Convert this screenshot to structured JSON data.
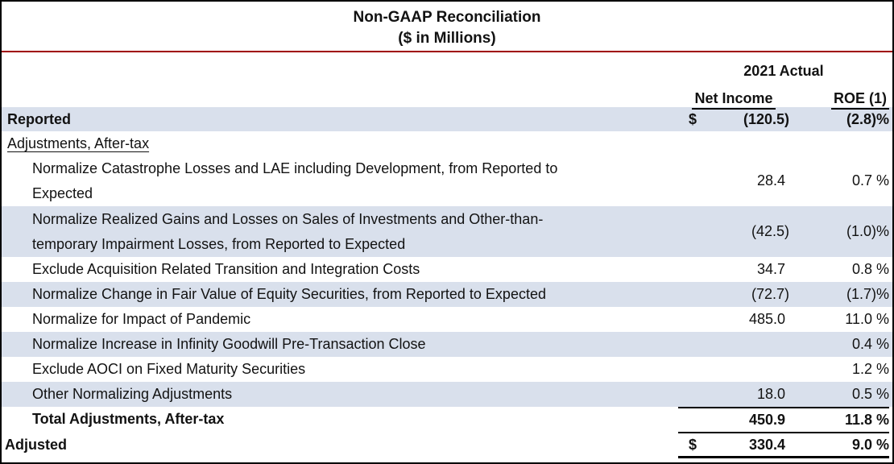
{
  "title": {
    "line1": "Non-GAAP Reconciliation",
    "line2": "($ in Millions)"
  },
  "columns": {
    "group": "2021 Actual",
    "net_income": "Net Income",
    "roe": "ROE (1)"
  },
  "colors": {
    "title_rule": "#A00000",
    "band": "#D9E0EC",
    "text": "#121212",
    "border": "#000000"
  },
  "rows": [
    {
      "label": "Reported",
      "dollar": "$",
      "net": "(120.5)",
      "roe": "(2.8)%"
    },
    {
      "label": "Adjustments, After-tax",
      "net": "",
      "roe": ""
    },
    {
      "label": "Normalize Catastrophe Losses and LAE including Development, from Reported to Expected",
      "net": "28.4 ",
      "roe": "0.7 %"
    },
    {
      "label": "Normalize Realized Gains and Losses on Sales of Investments and Other-than-temporary Impairment Losses, from Reported to Expected",
      "net": "(42.5)",
      "roe": "(1.0)%"
    },
    {
      "label": "Exclude Acquisition Related Transition and Integration Costs",
      "net": "34.7 ",
      "roe": "0.8 %"
    },
    {
      "label": "Normalize Change in Fair Value of Equity Securities, from Reported to Expected",
      "net": "(72.7)",
      "roe": "(1.7)%"
    },
    {
      "label": "Normalize for Impact of Pandemic",
      "net": "485.0 ",
      "roe": "11.0 %"
    },
    {
      "label": "Normalize Increase in Infinity Goodwill Pre-Transaction Close",
      "net": "",
      "roe": "0.4 %"
    },
    {
      "label": "Exclude AOCI on Fixed Maturity Securities",
      "net": "",
      "roe": "1.2 %"
    },
    {
      "label": "Other Normalizing Adjustments",
      "net": "18.0 ",
      "roe": "0.5 %"
    },
    {
      "label": "Total Adjustments, After-tax",
      "net": "450.9 ",
      "roe": "11.8 %"
    },
    {
      "label": "Adjusted",
      "dollar": "$",
      "net": "330.4 ",
      "roe": "9.0 %"
    }
  ]
}
